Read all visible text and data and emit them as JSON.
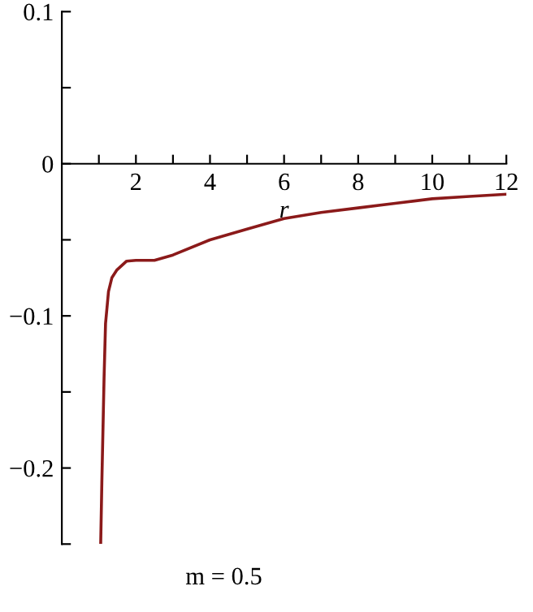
{
  "chart_data": {
    "type": "line",
    "xlabel": "r",
    "annotations": [
      "m = 0.5"
    ],
    "x": [
      1.05,
      1.08,
      1.14,
      1.18,
      1.26,
      1.35,
      1.48,
      1.75,
      2.0,
      2.5,
      3,
      4,
      5,
      6,
      7,
      8,
      9,
      10,
      11,
      12
    ],
    "series": [
      {
        "color": "#8b1a1a",
        "values": [
          -0.249,
          -0.21,
          -0.141,
          -0.105,
          -0.084,
          -0.075,
          -0.07,
          -0.064,
          -0.0635,
          -0.0635,
          -0.06,
          -0.05,
          -0.043,
          -0.036,
          -0.032,
          -0.029,
          -0.026,
          -0.023,
          -0.0215,
          -0.02
        ]
      }
    ],
    "xlim": [
      0,
      12
    ],
    "ylim": [
      -0.25,
      0.1
    ],
    "xticks": [
      {
        "value": 1,
        "label": null
      },
      2,
      {
        "value": 3,
        "label": null
      },
      4,
      {
        "value": 5,
        "label": null
      },
      6,
      {
        "value": 7,
        "label": null
      },
      8,
      {
        "value": 9,
        "label": null
      },
      10,
      {
        "value": 11,
        "label": null
      },
      12
    ],
    "yticks": [
      {
        "value": -0.25,
        "label": null
      },
      {
        "value": -0.2,
        "label": "−0.2"
      },
      {
        "value": -0.15,
        "label": null
      },
      {
        "value": -0.1,
        "label": "−0.1"
      },
      {
        "value": -0.05,
        "label": null
      },
      0,
      {
        "value": 0.05,
        "label": null
      },
      0.1
    ],
    "grid": false,
    "legend": false,
    "marker": "none",
    "line_style": "solid"
  }
}
